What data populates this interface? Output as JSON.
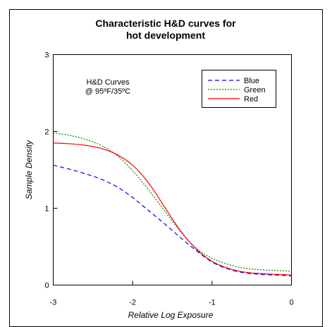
{
  "chart_data": {
    "type": "line",
    "title_lines": [
      "Characteristic H&D curves for",
      "hot development"
    ],
    "xlabel": "Relative Log Exposure",
    "ylabel": "Sample Density",
    "xlim": [
      -3,
      0
    ],
    "ylim": [
      0,
      3
    ],
    "xticks": [
      -3,
      -2,
      -1,
      0
    ],
    "yticks": [
      0,
      1,
      2,
      3
    ],
    "xtick_labels": [
      "-3",
      "-2",
      "-1",
      "0"
    ],
    "ytick_labels": [
      "0",
      "1",
      "2",
      "3"
    ],
    "grid": false,
    "legend_position": "top-right",
    "annotation_lines": [
      "H&D Curves",
      "@ 95ºF/35ºC"
    ],
    "series": [
      {
        "name": "Blue",
        "color": "#0000ff",
        "dash": "dashed",
        "x": [
          -3.0,
          -2.8,
          -2.6,
          -2.4,
          -2.2,
          -2.0,
          -1.8,
          -1.6,
          -1.4,
          -1.2,
          -1.0,
          -0.8,
          -0.6,
          -0.4,
          -0.2,
          0.0
        ],
        "y": [
          1.56,
          1.51,
          1.45,
          1.38,
          1.28,
          1.14,
          0.97,
          0.8,
          0.62,
          0.45,
          0.3,
          0.21,
          0.16,
          0.14,
          0.13,
          0.12
        ]
      },
      {
        "name": "Green",
        "color": "#008000",
        "dash": "dotted",
        "x": [
          -3.0,
          -2.8,
          -2.6,
          -2.4,
          -2.2,
          -2.0,
          -1.8,
          -1.6,
          -1.4,
          -1.2,
          -1.0,
          -0.8,
          -0.6,
          -0.4,
          -0.2,
          0.0
        ],
        "y": [
          1.98,
          1.95,
          1.9,
          1.82,
          1.69,
          1.49,
          1.24,
          0.97,
          0.7,
          0.48,
          0.35,
          0.27,
          0.22,
          0.2,
          0.19,
          0.18
        ]
      },
      {
        "name": "Red",
        "color": "#ff0000",
        "dash": "solid",
        "x": [
          -3.0,
          -2.8,
          -2.6,
          -2.4,
          -2.2,
          -2.0,
          -1.8,
          -1.6,
          -1.4,
          -1.2,
          -1.0,
          -0.8,
          -0.6,
          -0.4,
          -0.2,
          0.0
        ],
        "y": [
          1.85,
          1.84,
          1.82,
          1.78,
          1.7,
          1.56,
          1.33,
          1.02,
          0.71,
          0.47,
          0.31,
          0.22,
          0.17,
          0.15,
          0.14,
          0.13
        ]
      }
    ]
  }
}
